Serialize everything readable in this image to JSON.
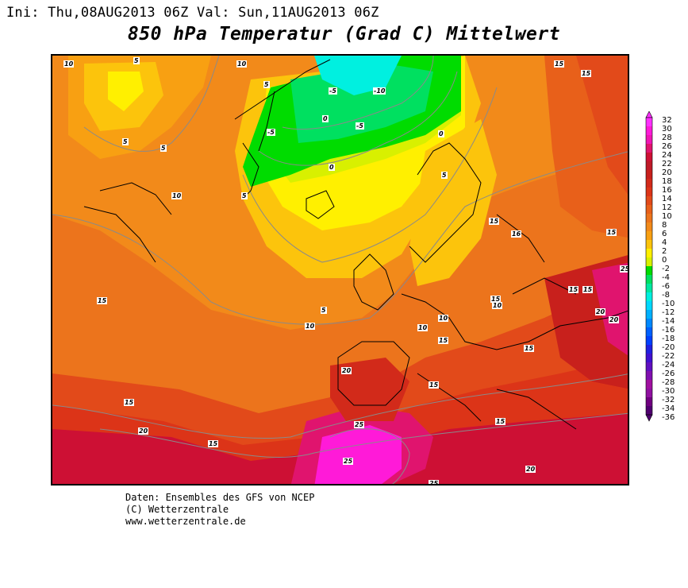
{
  "header": {
    "init_run": "Ini: Thu,08AUG2013 06Z Val: Sun,11AUG2013 06Z",
    "title": "850 hPa Temperatur (Grad C) Mittelwert"
  },
  "legend": {
    "levels": [
      "32",
      "30",
      "28",
      "26",
      "24",
      "22",
      "20",
      "18",
      "16",
      "14",
      "12",
      "10",
      "8",
      "6",
      "4",
      "2",
      "0",
      "-2",
      "-4",
      "-6",
      "-8",
      "-10",
      "-12",
      "-14",
      "-16",
      "-18",
      "-20",
      "-22",
      "-24",
      "-26",
      "-28",
      "-30",
      "-32",
      "-34",
      "-36"
    ],
    "colors": [
      "#ff30ff",
      "#ff1ad8",
      "#f016b4",
      "#e0146e",
      "#cd1034",
      "#bf1a28",
      "#c8201c",
      "#d22a1a",
      "#dc3418",
      "#e24a1a",
      "#e8601a",
      "#ec741c",
      "#f28a1a",
      "#f8a012",
      "#fcc40c",
      "#fff000",
      "#d8f000",
      "#00dc00",
      "#00e060",
      "#00e8a0",
      "#00f0e0",
      "#00d8ff",
      "#00b0ff",
      "#0088ff",
      "#0060ff",
      "#0040ff",
      "#2020e0",
      "#4010d0",
      "#6010c0",
      "#8010b0",
      "#a010a0",
      "#9010a0",
      "#700080",
      "#500070"
    ]
  },
  "map": {
    "contour_labels": [
      {
        "text": "10",
        "id": "c1"
      },
      {
        "text": "5",
        "id": "c2"
      },
      {
        "text": "10",
        "id": "c3"
      },
      {
        "text": "-10",
        "id": "c4"
      },
      {
        "text": "15",
        "id": "c5"
      },
      {
        "text": "15",
        "id": "c6"
      },
      {
        "text": "5",
        "id": "c7"
      },
      {
        "text": "-5",
        "id": "c8"
      },
      {
        "text": "0",
        "id": "c9"
      },
      {
        "text": "-5",
        "id": "c10"
      },
      {
        "text": "5",
        "id": "c11"
      },
      {
        "text": "-5",
        "id": "c12"
      },
      {
        "text": "0",
        "id": "c13"
      },
      {
        "text": "5",
        "id": "c14"
      },
      {
        "text": "0",
        "id": "c15"
      },
      {
        "text": "10",
        "id": "c16"
      },
      {
        "text": "5",
        "id": "c17"
      },
      {
        "text": "5",
        "id": "c18"
      },
      {
        "text": "15",
        "id": "c19"
      },
      {
        "text": "16",
        "id": "c20"
      },
      {
        "text": "15",
        "id": "c21"
      },
      {
        "text": "15",
        "id": "c22"
      },
      {
        "text": "15",
        "id": "c23"
      },
      {
        "text": "15",
        "id": "c24"
      },
      {
        "text": "5",
        "id": "c25"
      },
      {
        "text": "10",
        "id": "c26"
      },
      {
        "text": "10",
        "id": "c27"
      },
      {
        "text": "10",
        "id": "c28"
      },
      {
        "text": "15",
        "id": "c29"
      },
      {
        "text": "10",
        "id": "c30"
      },
      {
        "text": "15",
        "id": "c31"
      },
      {
        "text": "15",
        "id": "c32"
      },
      {
        "text": "20",
        "id": "c33"
      },
      {
        "text": "20",
        "id": "c34"
      },
      {
        "text": "15",
        "id": "c35"
      },
      {
        "text": "15",
        "id": "c36"
      },
      {
        "text": "20",
        "id": "c37"
      },
      {
        "text": "15",
        "id": "c38"
      },
      {
        "text": "25",
        "id": "c39"
      },
      {
        "text": "25",
        "id": "c40"
      },
      {
        "text": "15",
        "id": "c41"
      },
      {
        "text": "20",
        "id": "c42"
      },
      {
        "text": "25",
        "id": "c43"
      },
      {
        "text": "25",
        "id": "c44"
      },
      {
        "text": "20",
        "id": "c45"
      },
      {
        "text": "15",
        "id": "c46"
      }
    ]
  },
  "footer": {
    "line1": "Daten: Ensembles des GFS von NCEP",
    "line2": "(C) Wetterzentrale",
    "line3": "www.wetterzentrale.de"
  }
}
